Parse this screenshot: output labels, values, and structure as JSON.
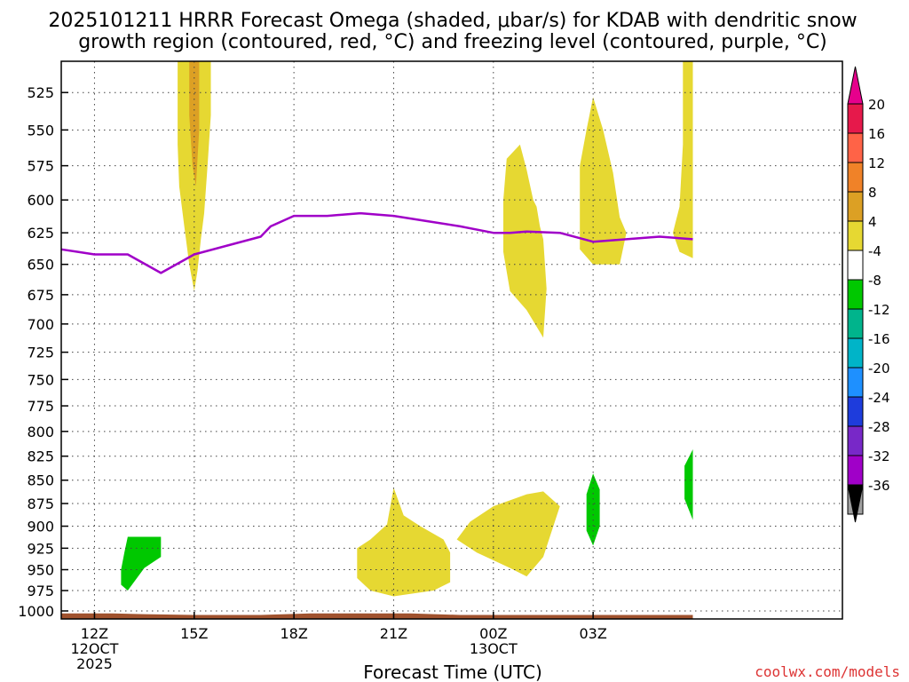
{
  "chart_data": {
    "type": "time-height contour",
    "title_line1": "2025101211 HRRR Forecast Omega (shaded, μbar/s) for KDAB with dendritic snow",
    "title_line2": "growth region (contoured, red, °C) and freezing level (contoured, purple, °C)",
    "xlabel": "Forecast Time (UTC)",
    "credit": "coolwx.com/models",
    "x_range_hours": [
      11,
      34.5
    ],
    "y_range_hpa": [
      1010,
      505
    ],
    "x_ticks": [
      {
        "hour": 12,
        "label": "12Z",
        "sub1": "12OCT",
        "sub2": "2025"
      },
      {
        "hour": 15,
        "label": "15Z",
        "sub1": "",
        "sub2": ""
      },
      {
        "hour": 18,
        "label": "18Z",
        "sub1": "",
        "sub2": ""
      },
      {
        "hour": 21,
        "label": "21Z",
        "sub1": "",
        "sub2": ""
      },
      {
        "hour": 24,
        "label": "00Z",
        "sub1": "13OCT",
        "sub2": ""
      },
      {
        "hour": 27,
        "label": "03Z",
        "sub1": "",
        "sub2": ""
      }
    ],
    "y_ticks": [
      525,
      550,
      575,
      600,
      625,
      650,
      675,
      700,
      725,
      750,
      775,
      800,
      825,
      850,
      875,
      900,
      925,
      950,
      975,
      1000
    ],
    "freezing_level": {
      "color": "#a000c8",
      "hours": [
        11,
        11.5,
        12,
        12.5,
        13,
        14,
        15,
        16,
        17,
        17.3,
        18,
        19,
        20,
        21,
        22,
        23,
        24,
        24.5,
        25,
        26,
        27,
        28,
        29,
        30
      ],
      "pressure": [
        638,
        640,
        642,
        642,
        642,
        657,
        642,
        635,
        628,
        620,
        612,
        612,
        610,
        612,
        616,
        620,
        625,
        625,
        624,
        625,
        632,
        630,
        628,
        630
      ]
    },
    "surface_pressure": {
      "color": "#a0522d",
      "hours": [
        11,
        12.5,
        13.5,
        15,
        17,
        18.5,
        21.5,
        23,
        24.5,
        27,
        30
      ],
      "pressure": [
        1003,
        1003,
        1004,
        1005,
        1005,
        1003,
        1003,
        1005,
        1005,
        1005,
        1005
      ]
    },
    "omega_regions": [
      {
        "name": "omega-4-8-1500z",
        "color": "#e6d832",
        "band": "4 to 8",
        "points": [
          [
            14.5,
            505
          ],
          [
            15.5,
            505
          ],
          [
            15.5,
            540
          ],
          [
            15.4,
            575
          ],
          [
            15.3,
            610
          ],
          [
            15.2,
            630
          ],
          [
            15.1,
            655
          ],
          [
            15.0,
            672
          ],
          [
            14.85,
            650
          ],
          [
            14.7,
            620
          ],
          [
            14.55,
            590
          ],
          [
            14.5,
            560
          ]
        ]
      },
      {
        "name": "omega-8-12-1500z",
        "color": "#dca024",
        "band": "8 to 12",
        "points": [
          [
            14.85,
            505
          ],
          [
            15.15,
            505
          ],
          [
            15.15,
            550
          ],
          [
            15.05,
            590
          ],
          [
            14.95,
            575
          ],
          [
            14.85,
            540
          ]
        ]
      },
      {
        "name": "omega-4-8-0000z",
        "color": "#e6d832",
        "band": "4 to 8",
        "points": [
          [
            24.8,
            560
          ],
          [
            25.0,
            578
          ],
          [
            25.2,
            600
          ],
          [
            25.3,
            605
          ],
          [
            25.4,
            620
          ],
          [
            25.5,
            630
          ],
          [
            25.6,
            670
          ],
          [
            25.5,
            712
          ],
          [
            25.0,
            688
          ],
          [
            24.5,
            672
          ],
          [
            24.3,
            640
          ],
          [
            24.3,
            600
          ],
          [
            24.4,
            570
          ]
        ]
      },
      {
        "name": "omega-4-8-0300z",
        "color": "#e6d832",
        "band": "4 to 8",
        "points": [
          [
            27.0,
            528
          ],
          [
            27.3,
            550
          ],
          [
            27.6,
            580
          ],
          [
            27.8,
            613
          ],
          [
            28.0,
            625
          ],
          [
            27.8,
            650
          ],
          [
            27.0,
            650
          ],
          [
            26.6,
            638
          ],
          [
            26.6,
            610
          ],
          [
            26.6,
            575
          ],
          [
            26.8,
            550
          ]
        ]
      },
      {
        "name": "omega-4-8-0430z",
        "color": "#e6d832",
        "band": "4 to 8",
        "points": [
          [
            29.7,
            505
          ],
          [
            30.0,
            505
          ],
          [
            30.0,
            645
          ],
          [
            29.6,
            640
          ],
          [
            29.4,
            625
          ],
          [
            29.6,
            605
          ],
          [
            29.7,
            560
          ]
        ]
      },
      {
        "name": "omega-4-8-2100z",
        "color": "#e6d832",
        "band": "4 to 8",
        "points": [
          [
            21.0,
            858
          ],
          [
            21.3,
            888
          ],
          [
            21.8,
            900
          ],
          [
            22.5,
            915
          ],
          [
            22.7,
            930
          ],
          [
            22.7,
            965
          ],
          [
            22.2,
            975
          ],
          [
            21.0,
            982
          ],
          [
            20.3,
            975
          ],
          [
            19.9,
            960
          ],
          [
            19.9,
            925
          ],
          [
            20.3,
            915
          ],
          [
            20.8,
            898
          ]
        ]
      },
      {
        "name": "omega-4-8-0100z",
        "color": "#e6d832",
        "band": "4 to 8",
        "points": [
          [
            24.0,
            878
          ],
          [
            25.0,
            865
          ],
          [
            25.5,
            862
          ],
          [
            26.0,
            878
          ],
          [
            25.5,
            935
          ],
          [
            25.0,
            958
          ],
          [
            24.5,
            948
          ],
          [
            23.5,
            930
          ],
          [
            22.9,
            915
          ],
          [
            23.3,
            895
          ]
        ]
      },
      {
        "name": "omega-neg4-neg8-1400z",
        "color": "#00c800",
        "band": "-4 to -8",
        "points": [
          [
            13.0,
            912
          ],
          [
            14.0,
            912
          ],
          [
            14.0,
            935
          ],
          [
            13.5,
            948
          ],
          [
            13.0,
            975
          ],
          [
            12.8,
            968
          ],
          [
            12.8,
            950
          ],
          [
            12.9,
            930
          ]
        ]
      },
      {
        "name": "omega-neg4-neg8-0300z",
        "color": "#00c800",
        "band": "-4 to -8",
        "points": [
          [
            27.0,
            843
          ],
          [
            27.2,
            860
          ],
          [
            27.2,
            900
          ],
          [
            27.0,
            922
          ],
          [
            26.8,
            905
          ],
          [
            26.8,
            865
          ]
        ]
      },
      {
        "name": "omega-neg4-neg8-0430z",
        "color": "#00c800",
        "band": "-4 to -8",
        "points": [
          [
            30.0,
            818
          ],
          [
            30.0,
            893
          ],
          [
            29.75,
            870
          ],
          [
            29.75,
            835
          ]
        ]
      }
    ],
    "colorbar": {
      "levels": [
        {
          "label": "20",
          "color": "#e6194b"
        },
        {
          "label": "16",
          "color": "#ff6347"
        },
        {
          "label": "12",
          "color": "#f08228"
        },
        {
          "label": "8",
          "color": "#dca024"
        },
        {
          "label": "4",
          "color": "#e6d832"
        },
        {
          "label": "-4",
          "color": "#ffffff"
        },
        {
          "label": "-8",
          "color": "#00c800"
        },
        {
          "label": "-12",
          "color": "#00b48c"
        },
        {
          "label": "-16",
          "color": "#00b4c8"
        },
        {
          "label": "-20",
          "color": "#1e90ff"
        },
        {
          "label": "-24",
          "color": "#1e3cdc"
        },
        {
          "label": "-28",
          "color": "#7828c8"
        },
        {
          "label": "-32",
          "color": "#a000c8"
        },
        {
          "label": "-36",
          "color": "#a0a0a0"
        }
      ],
      "top_arrow_color": "#e6008c",
      "bottom_arrow_color": "#000000"
    }
  }
}
